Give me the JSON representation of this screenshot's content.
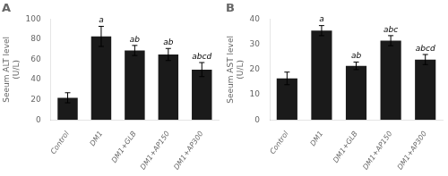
{
  "chart_data": [
    {
      "type": "bar",
      "title": "A",
      "ylabel": "Seeum ALT level\n(U/L)",
      "categories": [
        "Control",
        "DM1",
        "DM1+GLB",
        "DM1+AP150",
        "DM1+AP300"
      ],
      "values": [
        22,
        83,
        69,
        65,
        50
      ],
      "errors": [
        5,
        10,
        5,
        6,
        7
      ],
      "annotations": [
        {
          "category": "DM1",
          "text": "a"
        },
        {
          "category": "DM1+GLB",
          "text": "ab"
        },
        {
          "category": "DM1+AP150",
          "text": "ab"
        },
        {
          "category": "DM1+AP300",
          "text": "abcd"
        }
      ],
      "color": "#1a1a1a",
      "ylim": [
        0,
        100
      ],
      "yticks": [
        0,
        20,
        40,
        60,
        80,
        100
      ],
      "grid": false
    },
    {
      "type": "bar",
      "title": "B",
      "ylabel": "Seeum AST level\n(U/L)",
      "categories": [
        "Control",
        "DM1",
        "DM1+GLB",
        "DM1+AP150",
        "DM1+AP300"
      ],
      "values": [
        16.5,
        35.5,
        21.5,
        31.5,
        24
      ],
      "errors": [
        2.5,
        2,
        1.5,
        2,
        2
      ],
      "annotations": [
        {
          "category": "DM1",
          "text": "a"
        },
        {
          "category": "DM1+GLB",
          "text": "ab"
        },
        {
          "category": "DM1+AP150",
          "text": "abc"
        },
        {
          "category": "DM1+AP300",
          "text": "abcd"
        }
      ],
      "color": "#1a1a1a",
      "ylim": [
        0,
        40
      ],
      "yticks": [
        0,
        10,
        20,
        30,
        40
      ],
      "grid": false
    }
  ]
}
